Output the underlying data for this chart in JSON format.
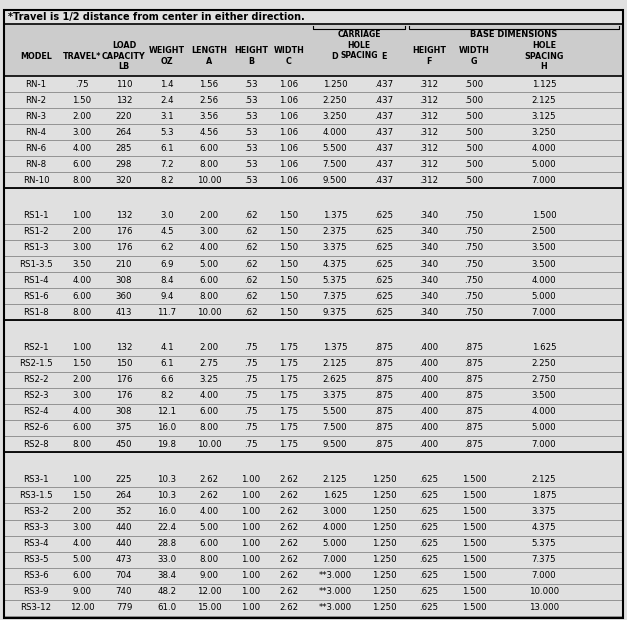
{
  "top_note": "*Travel is 1/2 distance from center in either direction.",
  "rows": [
    [
      "RN-1",
      ".75",
      "110",
      "1.4",
      "1.56",
      ".53",
      "1.06",
      "1.250",
      ".437",
      ".312",
      ".500",
      "1.125"
    ],
    [
      "RN-2",
      "1.50",
      "132",
      "2.4",
      "2.56",
      ".53",
      "1.06",
      "2.250",
      ".437",
      ".312",
      ".500",
      "2.125"
    ],
    [
      "RN-3",
      "2.00",
      "220",
      "3.1",
      "3.56",
      ".53",
      "1.06",
      "3.250",
      ".437",
      ".312",
      ".500",
      "3.125"
    ],
    [
      "RN-4",
      "3.00",
      "264",
      "5.3",
      "4.56",
      ".53",
      "1.06",
      "4.000",
      ".437",
      ".312",
      ".500",
      "3.250"
    ],
    [
      "RN-6",
      "4.00",
      "285",
      "6.1",
      "6.00",
      ".53",
      "1.06",
      "5.500",
      ".437",
      ".312",
      ".500",
      "4.000"
    ],
    [
      "RN-8",
      "6.00",
      "298",
      "7.2",
      "8.00",
      ".53",
      "1.06",
      "7.500",
      ".437",
      ".312",
      ".500",
      "5.000"
    ],
    [
      "RN-10",
      "8.00",
      "320",
      "8.2",
      "10.00",
      ".53",
      "1.06",
      "9.500",
      ".437",
      ".312",
      ".500",
      "7.000"
    ],
    null,
    [
      "RS1-1",
      "1.00",
      "132",
      "3.0",
      "2.00",
      ".62",
      "1.50",
      "1.375",
      ".625",
      ".340",
      ".750",
      "1.500"
    ],
    [
      "RS1-2",
      "2.00",
      "176",
      "4.5",
      "3.00",
      ".62",
      "1.50",
      "2.375",
      ".625",
      ".340",
      ".750",
      "2.500"
    ],
    [
      "RS1-3",
      "3.00",
      "176",
      "6.2",
      "4.00",
      ".62",
      "1.50",
      "3.375",
      ".625",
      ".340",
      ".750",
      "3.500"
    ],
    [
      "RS1-3.5",
      "3.50",
      "210",
      "6.9",
      "5.00",
      ".62",
      "1.50",
      "4.375",
      ".625",
      ".340",
      ".750",
      "3.500"
    ],
    [
      "RS1-4",
      "4.00",
      "308",
      "8.4",
      "6.00",
      ".62",
      "1.50",
      "5.375",
      ".625",
      ".340",
      ".750",
      "4.000"
    ],
    [
      "RS1-6",
      "6.00",
      "360",
      "9.4",
      "8.00",
      ".62",
      "1.50",
      "7.375",
      ".625",
      ".340",
      ".750",
      "5.000"
    ],
    [
      "RS1-8",
      "8.00",
      "413",
      "11.7",
      "10.00",
      ".62",
      "1.50",
      "9.375",
      ".625",
      ".340",
      ".750",
      "7.000"
    ],
    null,
    [
      "RS2-1",
      "1.00",
      "132",
      "4.1",
      "2.00",
      ".75",
      "1.75",
      "1.375",
      ".875",
      ".400",
      ".875",
      "1.625"
    ],
    [
      "RS2-1.5",
      "1.50",
      "150",
      "6.1",
      "2.75",
      ".75",
      "1.75",
      "2.125",
      ".875",
      ".400",
      ".875",
      "2.250"
    ],
    [
      "RS2-2",
      "2.00",
      "176",
      "6.6",
      "3.25",
      ".75",
      "1.75",
      "2.625",
      ".875",
      ".400",
      ".875",
      "2.750"
    ],
    [
      "RS2-3",
      "3.00",
      "176",
      "8.2",
      "4.00",
      ".75",
      "1.75",
      "3.375",
      ".875",
      ".400",
      ".875",
      "3.500"
    ],
    [
      "RS2-4",
      "4.00",
      "308",
      "12.1",
      "6.00",
      ".75",
      "1.75",
      "5.500",
      ".875",
      ".400",
      ".875",
      "4.000"
    ],
    [
      "RS2-6",
      "6.00",
      "375",
      "16.0",
      "8.00",
      ".75",
      "1.75",
      "7.500",
      ".875",
      ".400",
      ".875",
      "5.000"
    ],
    [
      "RS2-8",
      "8.00",
      "450",
      "19.8",
      "10.00",
      ".75",
      "1.75",
      "9.500",
      ".875",
      ".400",
      ".875",
      "7.000"
    ],
    null,
    [
      "RS3-1",
      "1.00",
      "225",
      "10.3",
      "2.62",
      "1.00",
      "2.62",
      "2.125",
      "1.250",
      ".625",
      "1.500",
      "2.125"
    ],
    [
      "RS3-1.5",
      "1.50",
      "264",
      "10.3",
      "2.62",
      "1.00",
      "2.62",
      "1.625",
      "1.250",
      ".625",
      "1.500",
      "1.875"
    ],
    [
      "RS3-2",
      "2.00",
      "352",
      "16.0",
      "4.00",
      "1.00",
      "2.62",
      "3.000",
      "1.250",
      ".625",
      "1.500",
      "3.375"
    ],
    [
      "RS3-3",
      "3.00",
      "440",
      "22.4",
      "5.00",
      "1.00",
      "2.62",
      "4.000",
      "1.250",
      ".625",
      "1.500",
      "4.375"
    ],
    [
      "RS3-4",
      "4.00",
      "440",
      "28.8",
      "6.00",
      "1.00",
      "2.62",
      "5.000",
      "1.250",
      ".625",
      "1.500",
      "5.375"
    ],
    [
      "RS3-5",
      "5.00",
      "473",
      "33.0",
      "8.00",
      "1.00",
      "2.62",
      "7.000",
      "1.250",
      ".625",
      "1.500",
      "7.375"
    ],
    [
      "RS3-6",
      "6.00",
      "704",
      "38.4",
      "9.00",
      "1.00",
      "2.62",
      "**3.000",
      "1.250",
      ".625",
      "1.500",
      "7.000"
    ],
    [
      "RS3-9",
      "9.00",
      "740",
      "48.2",
      "12.00",
      "1.00",
      "2.62",
      "**3.000",
      "1.250",
      ".625",
      "1.500",
      "10.000"
    ],
    [
      "RS3-12",
      "12.00",
      "779",
      "61.0",
      "15.00",
      "1.00",
      "2.62",
      "**3.000",
      "1.250",
      ".625",
      "1.500",
      "13.000"
    ]
  ],
  "bg_color": "#e0e0e0",
  "header_bg": "#cccccc",
  "sep_bg": "#c8c8c8",
  "col_labels": [
    "MODEL",
    "TRAVEL*",
    "LOAD\nCAPACITY\nLB",
    "WEIGHT\nOZ",
    "LENGTH\nA",
    "HEIGHT\nB",
    "WIDTH\nC",
    "D",
    "E",
    "HEIGHT\nF",
    "WIDTH\nG",
    "HOLE\nSPACING\nH"
  ],
  "carriage_bracket_cols": [
    7,
    8
  ],
  "base_bracket_cols": [
    9,
    10,
    11
  ]
}
